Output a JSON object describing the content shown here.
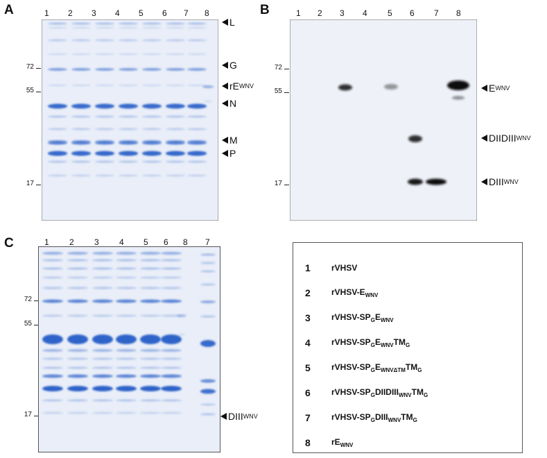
{
  "panels": {
    "A": {
      "letter": "A",
      "lanes": [
        "1",
        "2",
        "3",
        "4",
        "5",
        "6",
        "7",
        "8"
      ],
      "mw_markers": [
        "72",
        "55",
        "17"
      ],
      "annotations": [
        {
          "main": "L",
          "sub": ""
        },
        {
          "main": "G",
          "sub": ""
        },
        {
          "main": "rE",
          "sub": "WNV"
        },
        {
          "main": "N",
          "sub": ""
        },
        {
          "main": "M",
          "sub": ""
        },
        {
          "main": "P",
          "sub": ""
        }
      ]
    },
    "B": {
      "letter": "B",
      "lanes": [
        "1",
        "2",
        "3",
        "4",
        "5",
        "6",
        "7",
        "8"
      ],
      "mw_markers": [
        "72",
        "55",
        "17"
      ],
      "annotations": [
        {
          "main": "E",
          "sub": "WNV"
        },
        {
          "main": "DIIDIII",
          "sub": "WNV"
        },
        {
          "main": "DIII",
          "sub": "WNV"
        }
      ]
    },
    "C": {
      "letter": "C",
      "lanes": [
        "1",
        "2",
        "3",
        "4",
        "5",
        "6",
        "8",
        "7"
      ],
      "mw_markers": [
        "72",
        "55",
        "17"
      ],
      "annotations": [
        {
          "main": "DIII",
          "sub": "WNV"
        }
      ]
    }
  },
  "legend": [
    {
      "num": "1",
      "parts": [
        [
          "rVHSV",
          ""
        ]
      ]
    },
    {
      "num": "2",
      "parts": [
        [
          "rVHSV-E",
          "WNV"
        ]
      ]
    },
    {
      "num": "3",
      "parts": [
        [
          "rVHSV-SP",
          "G"
        ],
        [
          "E",
          "WNV"
        ]
      ]
    },
    {
      "num": "4",
      "parts": [
        [
          "rVHSV-SP",
          "G"
        ],
        [
          "E",
          "WNV"
        ],
        [
          "TM",
          "G"
        ]
      ]
    },
    {
      "num": "5",
      "parts": [
        [
          "rVHSV-SP",
          "G"
        ],
        [
          "E",
          "WNVΔTM"
        ],
        [
          "TM",
          "G"
        ]
      ]
    },
    {
      "num": "6",
      "parts": [
        [
          "rVHSV-SP",
          "G"
        ],
        [
          "DIIDIII",
          "WNV"
        ],
        [
          "TM",
          "G"
        ]
      ]
    },
    {
      "num": "7",
      "parts": [
        [
          "rVHSV-SP",
          "G"
        ],
        [
          "DIII",
          "WNV"
        ],
        [
          "TM",
          "G"
        ]
      ]
    },
    {
      "num": "8",
      "parts": [
        [
          "rE",
          "WNV"
        ]
      ]
    }
  ],
  "colors": {
    "coomassie_bg": "#e9eef8",
    "coomassie_band": "#2f63c9",
    "western_bg": "#eef1f8",
    "western_band": "#0b0b0b"
  }
}
